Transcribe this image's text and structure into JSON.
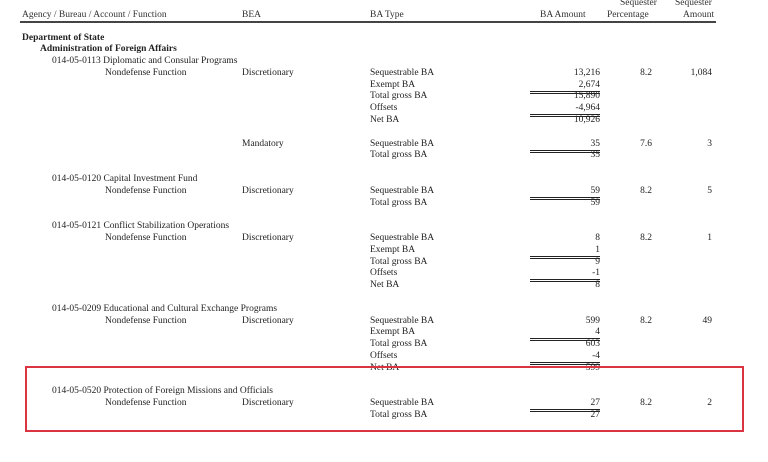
{
  "header": {
    "agency": "Agency / Bureau / Account / Function",
    "bea": "BEA",
    "ba_type": "BA Type",
    "ba_amount": "BA Amount",
    "seq_pct_1": "Sequester",
    "seq_pct_2": "Percentage",
    "seq_amt_1": "Sequester",
    "seq_amt_2": "Amount"
  },
  "department": "Department of State",
  "bureau": "Administration of Foreign Affairs",
  "highlight_color": "#d9343f",
  "accounts": [
    {
      "title": "014-05-0113 Diplomatic and Consular Programs",
      "functions": [
        {
          "function": "Nondefense Function",
          "bea": "Discretionary",
          "pct": "8.2",
          "seq": "1,084",
          "lines": [
            {
              "type": "Sequestrable BA",
              "amount": "13,216"
            },
            {
              "type": "Exempt BA",
              "amount": "2,674",
              "rule": true
            },
            {
              "type": "Total gross BA",
              "amount": "15,890"
            },
            {
              "type": "Offsets",
              "amount": "-4,964",
              "rule": true
            },
            {
              "type": "Net BA",
              "amount": "10,926"
            }
          ]
        },
        {
          "function": "",
          "bea": "Mandatory",
          "pct": "7.6",
          "seq": "3",
          "lines": [
            {
              "type": "Sequestrable BA",
              "amount": "35",
              "rule": true
            },
            {
              "type": "Total gross BA",
              "amount": "35"
            }
          ]
        }
      ]
    },
    {
      "title": "014-05-0120 Capital Investment Fund",
      "functions": [
        {
          "function": "Nondefense Function",
          "bea": "Discretionary",
          "pct": "8.2",
          "seq": "5",
          "lines": [
            {
              "type": "Sequestrable BA",
              "amount": "59",
              "rule": true
            },
            {
              "type": "Total gross BA",
              "amount": "59"
            }
          ]
        }
      ]
    },
    {
      "title": "014-05-0121 Conflict Stabilization Operations",
      "functions": [
        {
          "function": "Nondefense Function",
          "bea": "Discretionary",
          "pct": "8.2",
          "seq": "1",
          "lines": [
            {
              "type": "Sequestrable BA",
              "amount": "8"
            },
            {
              "type": "Exempt BA",
              "amount": "1",
              "rule": true
            },
            {
              "type": "Total gross BA",
              "amount": "9"
            },
            {
              "type": "Offsets",
              "amount": "-1",
              "rule": true
            },
            {
              "type": "Net BA",
              "amount": "8"
            }
          ]
        }
      ]
    },
    {
      "title": "014-05-0209 Educational and Cultural Exchange Programs",
      "functions": [
        {
          "function": "Nondefense Function",
          "bea": "Discretionary",
          "pct": "8.2",
          "seq": "49",
          "lines": [
            {
              "type": "Sequestrable BA",
              "amount": "599"
            },
            {
              "type": "Exempt BA",
              "amount": "4",
              "rule": true
            },
            {
              "type": "Total gross BA",
              "amount": "603"
            },
            {
              "type": "Offsets",
              "amount": "-4",
              "rule": true
            },
            {
              "type": "Net BA",
              "amount": "599"
            }
          ]
        }
      ]
    },
    {
      "title": "014-05-0520 Protection of Foreign Missions and Officials",
      "functions": [
        {
          "function": "Nondefense Function",
          "bea": "Discretionary",
          "pct": "8.2",
          "seq": "2",
          "lines": [
            {
              "type": "Sequestrable BA",
              "amount": "27",
              "rule": true
            },
            {
              "type": "Total gross BA",
              "amount": "27"
            }
          ]
        }
      ]
    }
  ]
}
